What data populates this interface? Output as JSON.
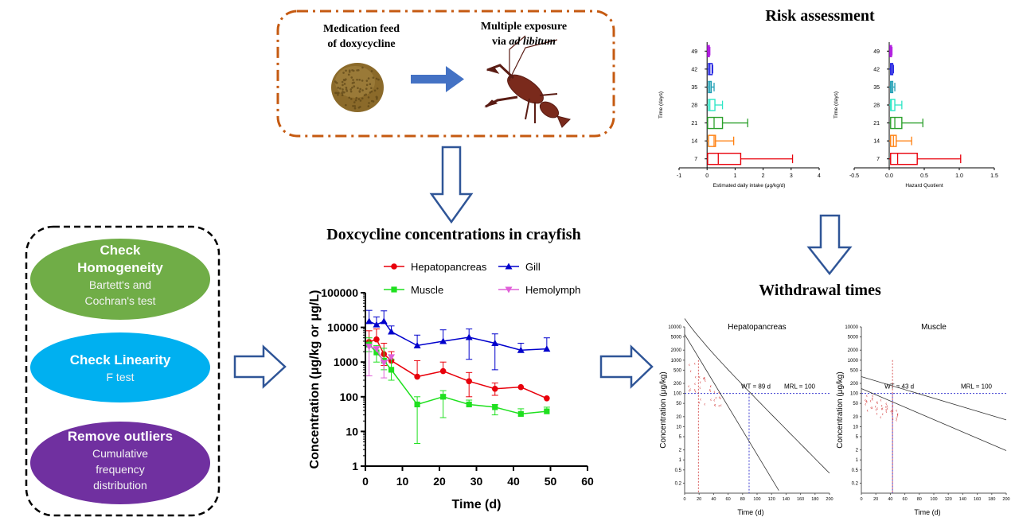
{
  "workflow": {
    "medication_label": [
      "Medication feed",
      "of doxycycline"
    ],
    "exposure_label": [
      "Multiple exposure",
      "via "
    ],
    "exposure_italic": "ad libitum",
    "steps": [
      {
        "title": [
          "Check",
          "Homogeneity"
        ],
        "sub": [
          "Bartett's and",
          "Cochran's test"
        ],
        "color": "#70ad47"
      },
      {
        "title": [
          "Check Linearity"
        ],
        "sub": [
          "F test"
        ],
        "color": "#00b0f0"
      },
      {
        "title": [
          "Remove outliers"
        ],
        "sub": [
          "Cumulative",
          "frequency",
          "distribution"
        ],
        "color": "#7030a0"
      }
    ]
  },
  "section_titles": {
    "concentration": "Doxcycline concentrations in crayfish",
    "risk": "Risk assessment",
    "withdrawal": "Withdrawal times"
  },
  "chart_data": [
    {
      "type": "line",
      "title": "Doxcycline concentrations in crayfish",
      "xlabel": "Time (d)",
      "ylabel": "Concentration (μg/kg or μg/L)",
      "xlim": [
        0,
        60
      ],
      "xticks": [
        0,
        10,
        20,
        30,
        40,
        50,
        60
      ],
      "ylim": [
        1,
        100000
      ],
      "yscale": "log",
      "yticks": [
        1,
        10,
        100,
        1000,
        10000,
        100000
      ],
      "ytick_labels": [
        "1",
        "10",
        "100",
        "1000",
        "10000",
        "100000"
      ],
      "legend": "top",
      "series": [
        {
          "name": "Hepatopancreas",
          "color": "#e8000b",
          "marker": "circle",
          "x": [
            1,
            3,
            5,
            7,
            14,
            21,
            28,
            35,
            42,
            49
          ],
          "y": [
            3800,
            4500,
            1700,
            1100,
            380,
            550,
            280,
            170,
            190,
            90
          ],
          "err_hi": [
            8000,
            9000,
            3500,
            2000,
            1100,
            1000,
            500,
            250,
            0,
            0
          ],
          "err_lo": [
            0,
            0,
            800,
            0,
            0,
            0,
            100,
            110,
            0,
            0
          ]
        },
        {
          "name": "Gill",
          "color": "#0000cc",
          "marker": "triangle",
          "x": [
            1,
            3,
            5,
            7,
            14,
            21,
            28,
            35,
            42,
            49
          ],
          "y": [
            15000,
            12000,
            15000,
            7500,
            3000,
            4000,
            5200,
            3500,
            2200,
            2400
          ],
          "err_hi": [
            31000,
            20000,
            30000,
            11000,
            6000,
            8500,
            9000,
            6500,
            3500,
            5000
          ],
          "err_lo": [
            0,
            0,
            0,
            0,
            0,
            0,
            1200,
            600,
            0,
            0
          ]
        },
        {
          "name": "Muscle",
          "color": "#1fe01f",
          "marker": "square",
          "x": [
            1,
            3,
            5,
            7,
            14,
            21,
            28,
            35,
            42,
            49
          ],
          "y": [
            3200,
            1900,
            1100,
            600,
            60,
            100,
            60,
            50,
            32,
            38
          ],
          "err_hi": [
            5000,
            3000,
            2500,
            1200,
            100,
            150,
            80,
            60,
            45,
            50
          ],
          "err_lo": [
            2000,
            1000,
            600,
            300,
            4.5,
            25,
            0,
            30,
            0,
            0
          ]
        },
        {
          "name": "Hemolymph",
          "color": "#e060d8",
          "marker": "triangle-down",
          "x": [
            1,
            3,
            5,
            7
          ],
          "y": [
            2800,
            2400,
            950,
            1400
          ],
          "err_hi": [
            0,
            0,
            0,
            0
          ],
          "err_lo": [
            400,
            0,
            350,
            0
          ]
        }
      ]
    },
    {
      "type": "boxplot",
      "orientation": "horizontal",
      "xlabel": "Estimated daily intake (μg/kg/d)",
      "ylabel": "Time (days)",
      "xlim": [
        -1,
        4
      ],
      "xticks": [
        -1,
        0,
        1,
        2,
        3,
        4
      ],
      "categories": [
        "7",
        "14",
        "21",
        "28",
        "35",
        "42",
        "49"
      ],
      "boxes": [
        {
          "min": 0.0,
          "q1": 0.02,
          "median": 0.4,
          "q3": 1.2,
          "max": 3.05,
          "color": "#e8000b"
        },
        {
          "min": 0.0,
          "q1": 0.05,
          "median": 0.25,
          "q3": 0.3,
          "max": 0.95,
          "color": "#ff7f0e"
        },
        {
          "min": 0.0,
          "q1": 0.02,
          "median": 0.25,
          "q3": 0.55,
          "max": 1.45,
          "color": "#2ca02c"
        },
        {
          "min": 0.0,
          "q1": 0.05,
          "median": 0.1,
          "q3": 0.28,
          "max": 0.55,
          "color": "#2ee6c6"
        },
        {
          "min": 0.0,
          "q1": 0.05,
          "median": 0.1,
          "q3": 0.15,
          "max": 0.25,
          "color": "#1f9fb4"
        },
        {
          "min": 0.0,
          "q1": 0.05,
          "median": 0.1,
          "q3": 0.18,
          "max": 0.2,
          "color": "#1f1fe0"
        },
        {
          "min": 0.0,
          "q1": 0.02,
          "median": 0.05,
          "q3": 0.08,
          "max": 0.1,
          "color": "#b21fe0"
        }
      ]
    },
    {
      "type": "boxplot",
      "orientation": "horizontal",
      "xlabel": "Hazard Quotient",
      "ylabel": "Time (days)",
      "xlim": [
        -0.5,
        1.5
      ],
      "xticks": [
        -0.5,
        0.0,
        0.5,
        1.0,
        1.5
      ],
      "xtick_labels": [
        "-0.5",
        "0.0",
        "0.5",
        "1.0",
        "1.5"
      ],
      "categories": [
        "7",
        "14",
        "21",
        "28",
        "35",
        "42",
        "49"
      ],
      "boxes": [
        {
          "min": 0.0,
          "q1": 0.02,
          "median": 0.12,
          "q3": 0.4,
          "max": 1.02,
          "color": "#e8000b"
        },
        {
          "min": 0.0,
          "q1": 0.02,
          "median": 0.06,
          "q3": 0.1,
          "max": 0.32,
          "color": "#ff7f0e"
        },
        {
          "min": 0.0,
          "q1": 0.02,
          "median": 0.08,
          "q3": 0.18,
          "max": 0.48,
          "color": "#2ca02c"
        },
        {
          "min": 0.0,
          "q1": 0.02,
          "median": 0.03,
          "q3": 0.08,
          "max": 0.18,
          "color": "#2ee6c6"
        },
        {
          "min": 0.0,
          "q1": 0.02,
          "median": 0.03,
          "q3": 0.05,
          "max": 0.08,
          "color": "#1f9fb4"
        },
        {
          "min": 0.0,
          "q1": 0.02,
          "median": 0.03,
          "q3": 0.05,
          "max": 0.06,
          "color": "#1f1fe0"
        },
        {
          "min": 0.0,
          "q1": 0.01,
          "median": 0.02,
          "q3": 0.03,
          "max": 0.04,
          "color": "#b21fe0"
        }
      ]
    },
    {
      "type": "scatter",
      "title": "Hepatopancreas",
      "xlabel": "Time (d)",
      "ylabel": "Concentration (μg/kg)",
      "xlim": [
        0,
        200
      ],
      "xticks": [
        0,
        20,
        40,
        60,
        80,
        100,
        120,
        140,
        160,
        180,
        200
      ],
      "yscale": "log",
      "ylim": [
        0.1,
        10000
      ],
      "ytick_labels": [
        "10000",
        "5000",
        "2000",
        "1000",
        "500",
        "200",
        "100",
        "50",
        "20",
        "10",
        "5",
        "2",
        "1",
        "0.5",
        "0.2"
      ],
      "wt_label": "WT = 89 d",
      "mrl_label": "MRL = 100",
      "wt_value": 89,
      "mrl_value": 100
    },
    {
      "type": "scatter",
      "title": "Muscle",
      "xlabel": "Time (d)",
      "ylabel": "Concentration (μg/kg)",
      "xlim": [
        0,
        200
      ],
      "xticks": [
        0,
        20,
        40,
        60,
        80,
        100,
        120,
        140,
        160,
        180,
        200
      ],
      "yscale": "log",
      "ylim": [
        0.1,
        10000
      ],
      "ytick_labels": [
        "10000",
        "5000",
        "2000",
        "1000",
        "500",
        "200",
        "100",
        "50",
        "20",
        "10",
        "5",
        "2",
        "1",
        "0.5",
        "0.2"
      ],
      "wt_label": "WT = 43 d",
      "mrl_label": "MRL = 100",
      "wt_value": 43,
      "mrl_value": 100
    }
  ]
}
